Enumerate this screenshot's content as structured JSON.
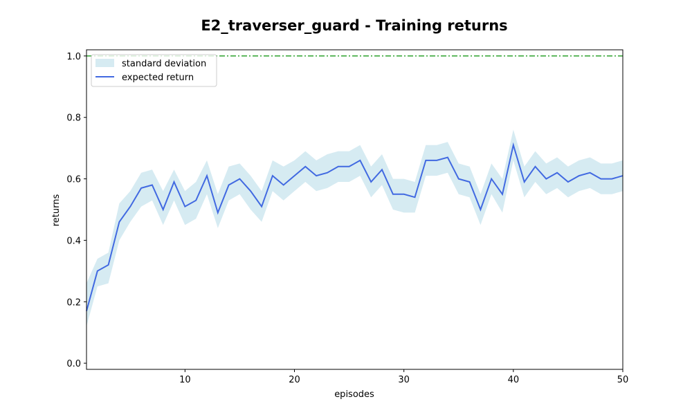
{
  "chart_data": {
    "type": "line",
    "title": "E2_traverser_guard - Training returns",
    "xlabel": "episodes",
    "ylabel": "returns",
    "xlim": [
      1,
      50
    ],
    "ylim": [
      -0.02,
      1.02
    ],
    "xticks": [
      10,
      20,
      30,
      40,
      50
    ],
    "yticks": [
      0.0,
      0.2,
      0.4,
      0.6,
      0.8,
      1.0
    ],
    "ytick_labels": [
      "0.0",
      "0.2",
      "0.4",
      "0.6",
      "0.8",
      "1.0"
    ],
    "grid": false,
    "legend_position": "top-left",
    "reference_line": {
      "y": 1.0,
      "color": "#2ca02c",
      "style": "dash-dot"
    },
    "x": [
      1,
      2,
      3,
      4,
      5,
      6,
      7,
      8,
      9,
      10,
      11,
      12,
      13,
      14,
      15,
      16,
      17,
      18,
      19,
      20,
      21,
      22,
      23,
      24,
      25,
      26,
      27,
      28,
      29,
      30,
      31,
      32,
      33,
      34,
      35,
      36,
      37,
      38,
      39,
      40,
      41,
      42,
      43,
      44,
      45,
      46,
      47,
      48,
      49,
      50
    ],
    "series": [
      {
        "name": "expected return",
        "color": "#4169e1",
        "values": [
          0.17,
          0.3,
          0.32,
          0.46,
          0.51,
          0.57,
          0.58,
          0.5,
          0.59,
          0.51,
          0.53,
          0.61,
          0.49,
          0.58,
          0.6,
          0.56,
          0.51,
          0.61,
          0.58,
          0.61,
          0.64,
          0.61,
          0.62,
          0.64,
          0.64,
          0.66,
          0.59,
          0.63,
          0.55,
          0.55,
          0.54,
          0.66,
          0.66,
          0.67,
          0.6,
          0.59,
          0.5,
          0.6,
          0.55,
          0.71,
          0.59,
          0.64,
          0.6,
          0.62,
          0.59,
          0.61,
          0.62,
          0.6,
          0.6,
          0.61
        ]
      }
    ],
    "band": {
      "name": "standard deviation",
      "color": "#add8e6",
      "upper": [
        0.26,
        0.34,
        0.36,
        0.52,
        0.56,
        0.62,
        0.63,
        0.56,
        0.63,
        0.56,
        0.59,
        0.66,
        0.55,
        0.64,
        0.65,
        0.61,
        0.56,
        0.66,
        0.64,
        0.66,
        0.69,
        0.66,
        0.68,
        0.69,
        0.69,
        0.71,
        0.64,
        0.68,
        0.6,
        0.6,
        0.59,
        0.71,
        0.71,
        0.72,
        0.65,
        0.64,
        0.55,
        0.65,
        0.6,
        0.76,
        0.64,
        0.69,
        0.65,
        0.67,
        0.64,
        0.66,
        0.67,
        0.65,
        0.65,
        0.66
      ],
      "lower": [
        0.12,
        0.25,
        0.26,
        0.4,
        0.46,
        0.51,
        0.53,
        0.45,
        0.53,
        0.45,
        0.47,
        0.55,
        0.44,
        0.53,
        0.55,
        0.5,
        0.46,
        0.56,
        0.53,
        0.56,
        0.59,
        0.56,
        0.57,
        0.59,
        0.59,
        0.61,
        0.54,
        0.58,
        0.5,
        0.49,
        0.49,
        0.61,
        0.61,
        0.62,
        0.55,
        0.54,
        0.45,
        0.55,
        0.49,
        0.66,
        0.54,
        0.59,
        0.55,
        0.57,
        0.54,
        0.56,
        0.57,
        0.55,
        0.55,
        0.56
      ]
    }
  }
}
